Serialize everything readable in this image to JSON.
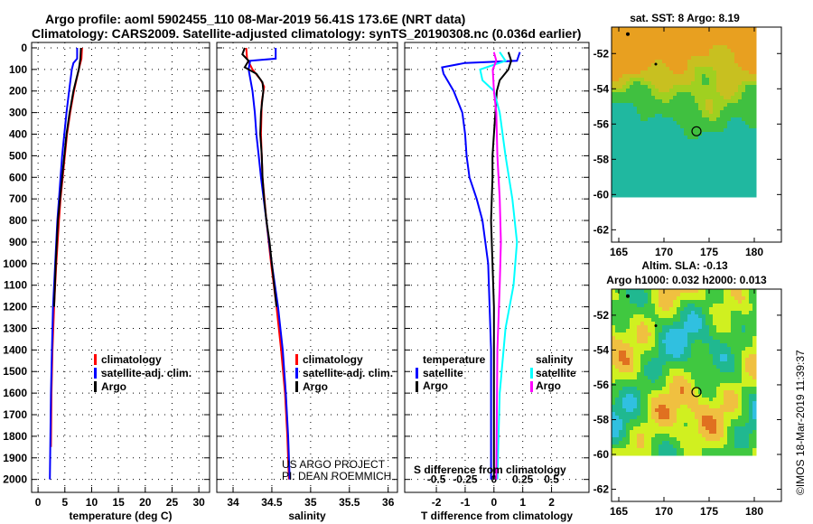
{
  "title_line1": "Argo profile: aoml 5902455_110 08-Mar-2019 56.41S 173.6E (NRT data)",
  "title_line2": "Climatology: CARS2009. Satellite-adjusted climatology: synTS_20190308.nc (0.036d earlier)",
  "credit": [
    "US ARGO PROJECT",
    "PI: DEAN ROEMMICH"
  ],
  "imos_stamp": "©IMOS 18-Mar-2019 11:39:37",
  "colors": {
    "climatology": "#ff0000",
    "satellite": "#0000ff",
    "argo": "#000000",
    "sal_satellite": "#00ffff",
    "sal_argo": "#ff00ff"
  },
  "chart_data": [
    {
      "type": "line",
      "name": "temperature",
      "xlabel": "temperature (deg C)",
      "ylabel": "depth",
      "xlim": [
        -1.2,
        32
      ],
      "ylim": [
        2060,
        -25
      ],
      "xticks": [
        0,
        5,
        10,
        15,
        20,
        25,
        30
      ],
      "yticks": [
        0,
        100,
        200,
        300,
        400,
        500,
        600,
        700,
        800,
        900,
        1000,
        1100,
        1200,
        1300,
        1400,
        1500,
        1600,
        1700,
        1800,
        1900,
        2000
      ],
      "legend": [
        "climatology",
        "satellite-adj. clim.",
        "Argo"
      ],
      "series": [
        {
          "name": "climatology",
          "color": "#ff0000",
          "depth": [
            0,
            50,
            100,
            200,
            300,
            400,
            500,
            600,
            700,
            800,
            1000,
            1200,
            1400,
            1600,
            1850
          ],
          "values": [
            8.2,
            8.1,
            7.6,
            6.7,
            6.0,
            5.4,
            5.0,
            4.6,
            4.2,
            3.9,
            3.4,
            3.0,
            2.7,
            2.5,
            2.4
          ]
        },
        {
          "name": "satellite-adj. clim.",
          "color": "#0000ff",
          "depth": [
            0,
            50,
            70,
            100,
            200,
            300,
            400,
            500,
            600,
            700,
            800,
            1000,
            1200,
            1400,
            1600,
            1800,
            2000
          ],
          "values": [
            7.3,
            7.3,
            6.6,
            6.3,
            5.8,
            5.3,
            4.9,
            4.5,
            4.2,
            3.9,
            3.6,
            3.2,
            2.8,
            2.6,
            2.4,
            2.3,
            2.2
          ]
        },
        {
          "name": "Argo",
          "color": "#000000",
          "depth": [
            0,
            50,
            100,
            150,
            200,
            300,
            400,
            500,
            600,
            700,
            800,
            900,
            1000,
            1200
          ],
          "values": [
            8.0,
            7.9,
            7.6,
            7.1,
            6.6,
            5.9,
            5.3,
            4.9,
            4.5,
            4.1,
            3.7,
            3.5,
            3.3,
            3.0
          ]
        }
      ]
    },
    {
      "type": "line",
      "name": "salinity",
      "xlabel": "salinity",
      "xlim": [
        33.79,
        36.12
      ],
      "ylim": [
        2060,
        -25
      ],
      "xticks": [
        34,
        34.5,
        35,
        35.5,
        36
      ],
      "legend": [
        "climatology",
        "satellite-adj. clim.",
        "Argo"
      ],
      "series": [
        {
          "name": "climatology",
          "color": "#ff0000",
          "depth": [
            0,
            50,
            100,
            150,
            180,
            250,
            400,
            600,
            800,
            1000,
            1200,
            1400,
            1600,
            1800,
            2000
          ],
          "values": [
            34.17,
            34.18,
            34.25,
            34.36,
            34.4,
            34.37,
            34.36,
            34.38,
            34.43,
            34.49,
            34.56,
            34.62,
            34.67,
            34.7,
            34.72
          ]
        },
        {
          "name": "satellite-adj. clim.",
          "color": "#0000ff",
          "depth": [
            0,
            50,
            60,
            100,
            200,
            300,
            400,
            500,
            600,
            800,
            1000,
            1200,
            1400,
            1600,
            1800,
            2000
          ],
          "values": [
            34.55,
            34.55,
            34.22,
            34.2,
            34.25,
            34.28,
            34.3,
            34.33,
            34.36,
            34.43,
            34.5,
            34.58,
            34.64,
            34.68,
            34.71,
            34.73
          ]
        },
        {
          "name": "Argo",
          "color": "#000000",
          "depth": [
            0,
            30,
            60,
            90,
            120,
            160,
            200,
            300,
            400,
            500,
            600,
            700,
            800,
            900,
            1000,
            1100,
            1200
          ],
          "values": [
            34.15,
            34.12,
            34.2,
            34.15,
            34.3,
            34.38,
            34.39,
            34.36,
            34.35,
            34.37,
            34.38,
            34.4,
            34.43,
            34.47,
            34.5,
            34.53,
            34.56
          ]
        }
      ]
    },
    {
      "type": "line",
      "name": "difference",
      "xlabel": "T difference from climatology",
      "x2label": "S difference from climatology",
      "xlim": [
        -3.1,
        3.3
      ],
      "ylim": [
        2060,
        -25
      ],
      "xticks": [
        -2,
        -1,
        0,
        1,
        2
      ],
      "x2ticks": [
        -0.5,
        -0.25,
        0,
        0.25,
        0.5
      ],
      "x2_scale_ratio": 0.25,
      "legend_T": {
        "title": "temperature",
        "items": [
          "satellite",
          "Argo"
        ]
      },
      "legend_S": {
        "title": "salinity",
        "items": [
          "satellite",
          "Argo"
        ]
      },
      "series": [
        {
          "name": "temperature satellite",
          "color": "#0000ff",
          "axis": "T",
          "depth": [
            20,
            60,
            70,
            90,
            120,
            200,
            300,
            400,
            500,
            600,
            700,
            800,
            1000,
            1200,
            1400,
            2000
          ],
          "values": [
            0.9,
            0.8,
            -1.0,
            -1.8,
            -1.75,
            -1.4,
            -1.1,
            -1.0,
            -0.95,
            -0.85,
            -0.6,
            -0.4,
            -0.2,
            -0.15,
            -0.1,
            -0.1
          ]
        },
        {
          "name": "temperature Argo",
          "color": "#000000",
          "axis": "T",
          "depth": [
            20,
            60,
            100,
            150,
            200,
            300,
            400,
            500,
            600,
            800,
            1000,
            1200,
            1500,
            2000
          ],
          "values": [
            0.5,
            0.6,
            0.5,
            0.2,
            0.1,
            0.05,
            0.0,
            -0.05,
            -0.05,
            -0.1,
            -0.05,
            0.0,
            0.0,
            0.0
          ]
        },
        {
          "name": "salinity satellite",
          "color": "#00ffff",
          "axis": "S",
          "depth": [
            20,
            60,
            100,
            150,
            200,
            300,
            500,
            700,
            900,
            1100,
            1300,
            1600,
            2000
          ],
          "values": [
            0.05,
            0.1,
            -0.12,
            -0.1,
            0.0,
            0.05,
            0.1,
            0.16,
            0.2,
            0.17,
            0.1,
            0.05,
            0.03
          ]
        },
        {
          "name": "salinity Argo",
          "color": "#ff00ff",
          "axis": "S",
          "depth": [
            20,
            60,
            100,
            200,
            300,
            500,
            700,
            900,
            1100,
            1400,
            2000
          ],
          "values": [
            0.0,
            0.02,
            -0.01,
            0.0,
            0.02,
            0.03,
            0.05,
            0.06,
            0.05,
            0.03,
            0.02
          ]
        }
      ]
    },
    {
      "type": "heatmap",
      "name": "sst-map",
      "title": "sat. SST: 8 Argo: 8.19",
      "xticks": [
        165,
        170,
        175,
        180
      ],
      "yticks": [
        -52,
        -54,
        -56,
        -58,
        -60,
        -62
      ],
      "xlim": [
        164.2,
        183
      ],
      "ylim": [
        -62.7,
        -50.5
      ],
      "profile": {
        "lon": 173.6,
        "lat": -56.41
      }
    },
    {
      "type": "heatmap",
      "name": "sla-map",
      "title": "Altim. SLA: -0.13",
      "subtitle": "Argo h1000: 0.032 h2000: 0.013",
      "xticks": [
        165,
        170,
        175,
        180
      ],
      "yticks": [
        -52,
        -54,
        -56,
        -58,
        -60,
        -62
      ],
      "xlim": [
        164.2,
        183
      ],
      "ylim": [
        -62.7,
        -50.5
      ],
      "profile": {
        "lon": 173.6,
        "lat": -56.41
      }
    }
  ]
}
